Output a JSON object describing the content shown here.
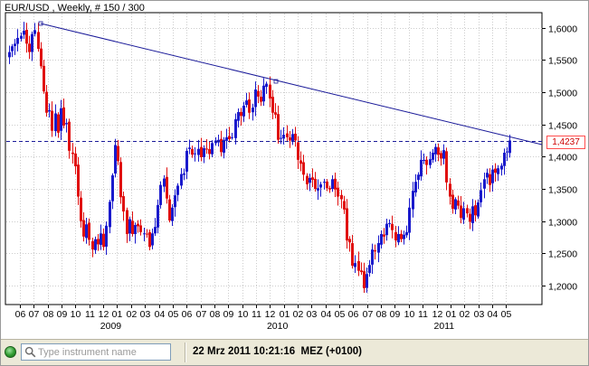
{
  "chart": {
    "title": "EUR/USD , Weekly, # 150 / 300",
    "current_price": "1,4237",
    "price_axis": [
      "1,6000",
      "1,5500",
      "1,5000",
      "1,4500",
      "1,4000",
      "1,3500",
      "1,3000",
      "1,2500",
      "1,2000"
    ],
    "month_axis": [
      "06",
      "07",
      "08",
      "09",
      "10",
      "11",
      "12",
      "01",
      "02",
      "03",
      "04",
      "05",
      "06",
      "07",
      "08",
      "09",
      "10",
      "11",
      "12",
      "01",
      "02",
      "03",
      "04",
      "05",
      "06",
      "07",
      "08",
      "09",
      "10",
      "11",
      "12",
      "01",
      "02",
      "03",
      "04",
      "05"
    ],
    "year_axis": [
      "2009",
      "2010",
      "2011"
    ],
    "colors": {
      "up": "#1a1acc",
      "down": "#e01010",
      "trendline": "#1a1a99",
      "grid": "#cccccc",
      "price_line": "#1a1a99"
    }
  },
  "chart_data": {
    "type": "candlestick",
    "title": "EUR/USD , Weekly, # 150 / 300",
    "x_unit": "week (Jun 2008 – Mar 2011)",
    "ylim": [
      1.18,
      1.62
    ],
    "closes": [
      1.562,
      1.571,
      1.575,
      1.584,
      1.587,
      1.595,
      1.575,
      1.562,
      1.59,
      1.596,
      1.567,
      1.54,
      1.501,
      1.468,
      1.472,
      1.44,
      1.467,
      1.437,
      1.475,
      1.448,
      1.452,
      1.409,
      1.404,
      1.385,
      1.338,
      1.3,
      1.276,
      1.295,
      1.271,
      1.256,
      1.272,
      1.264,
      1.281,
      1.26,
      1.293,
      1.33,
      1.371,
      1.418,
      1.393,
      1.337,
      1.315,
      1.28,
      1.303,
      1.28,
      1.294,
      1.292,
      1.283,
      1.281,
      1.28,
      1.26,
      1.281,
      1.291,
      1.325,
      1.356,
      1.366,
      1.335,
      1.301,
      1.321,
      1.34,
      1.355,
      1.373,
      1.374,
      1.409,
      1.414,
      1.403,
      1.405,
      1.412,
      1.399,
      1.413,
      1.411,
      1.404,
      1.421,
      1.425,
      1.426,
      1.407,
      1.426,
      1.43,
      1.427,
      1.43,
      1.458,
      1.469,
      1.463,
      1.479,
      1.487,
      1.468,
      1.476,
      1.504,
      1.493,
      1.485,
      1.51,
      1.513,
      1.49,
      1.468,
      1.465,
      1.426,
      1.429,
      1.434,
      1.43,
      1.425,
      1.435,
      1.425,
      1.395,
      1.389,
      1.372,
      1.357,
      1.367,
      1.364,
      1.35,
      1.351,
      1.357,
      1.361,
      1.351,
      1.349,
      1.365,
      1.349,
      1.338,
      1.334,
      1.318,
      1.27,
      1.267,
      1.231,
      1.235,
      1.223,
      1.221,
      1.196,
      1.218,
      1.232,
      1.256,
      1.253,
      1.266,
      1.28,
      1.276,
      1.296,
      1.297,
      1.286,
      1.27,
      1.28,
      1.272,
      1.279,
      1.283,
      1.321,
      1.347,
      1.361,
      1.372,
      1.395,
      1.395,
      1.387,
      1.396,
      1.406,
      1.415,
      1.403,
      1.397,
      1.41,
      1.36,
      1.338,
      1.319,
      1.334,
      1.324,
      1.305,
      1.32,
      1.312,
      1.299,
      1.323,
      1.309,
      1.329,
      1.348,
      1.365,
      1.375,
      1.356,
      1.38,
      1.375,
      1.382,
      1.386,
      1.406,
      1.408,
      1.425
    ]
  },
  "statusbar": {
    "search_placeholder": "Type instrument name",
    "datetime": "22 Mrz 2011 10:21:16  MEZ (+0100)"
  }
}
